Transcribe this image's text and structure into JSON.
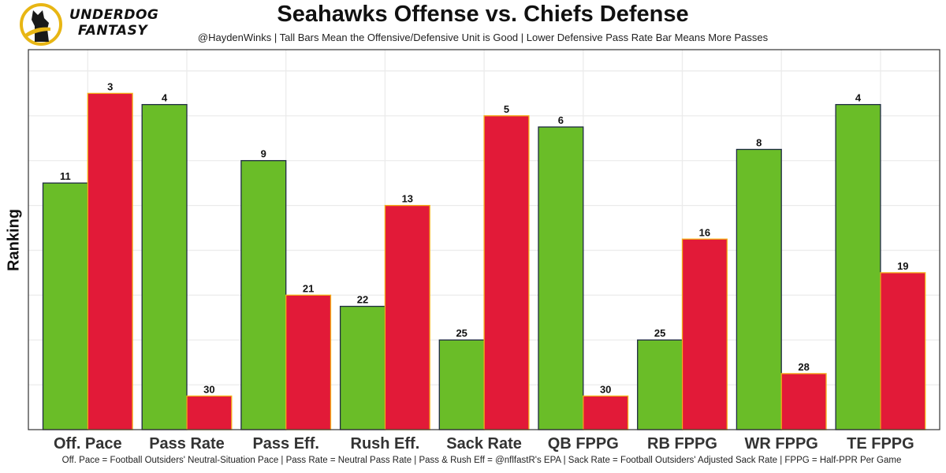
{
  "brand": {
    "line1": "UNDERDOG",
    "line2": "FANTASY",
    "logo_icon": "underdog-dog-logo-icon"
  },
  "colors": {
    "offense": "#6abd28",
    "offense_border": "#1f2a44",
    "defense": "#e21a38",
    "defense_border": "#f5b119",
    "grid": "#ebebeb",
    "logo_ring": "#e8b614"
  },
  "chart_data": {
    "type": "bar",
    "title": "Seahawks Offense vs. Chiefs Defense",
    "subtitle": "@HaydenWinks | Tall Bars Mean the Offensive/Defensive Unit is Good | Lower Defensive Pass Rate Bar Means More Passes",
    "xlabel": "",
    "ylabel": "Ranking",
    "caption": "Off. Pace = Football Outsiders' Neutral-Situation Pace | Pass Rate = Neutral Pass Rate | Pass & Rush Eff = @nflfastR's EPA | Sack Rate = Football Outsiders' Adjusted Sack Rate | FPPG = Half-PPR Per Game",
    "categories": [
      "Off. Pace",
      "Pass Rate",
      "Pass Eff.",
      "Rush Eff.",
      "Sack Rate",
      "QB FPPG",
      "RB FPPG",
      "WR FPPG",
      "TE FPPG"
    ],
    "series": [
      {
        "name": "Seahawks Offense",
        "values": [
          11,
          4,
          9,
          22,
          25,
          6,
          25,
          8,
          4
        ]
      },
      {
        "name": "Chiefs Defense",
        "values": [
          3,
          30,
          21,
          13,
          5,
          30,
          16,
          28,
          19
        ]
      }
    ],
    "bar_height_rule": "height proportional to (33 - ranking); rank 1 tallest",
    "ylim": [
      0,
      33
    ],
    "grid": true,
    "y_tick_labels_shown": false,
    "legend": "none"
  }
}
